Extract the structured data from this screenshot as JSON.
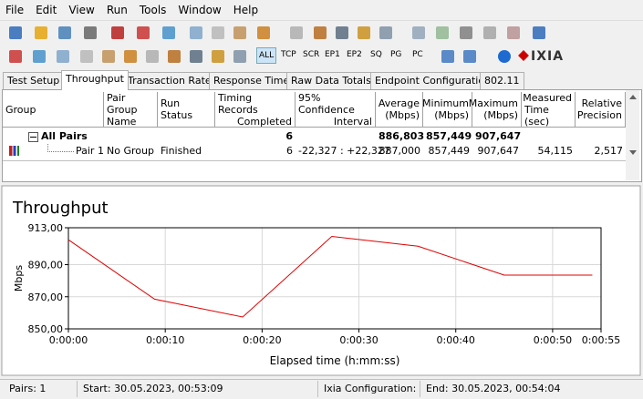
{
  "menu": [
    "File",
    "Edit",
    "View",
    "Run",
    "Tools",
    "Window",
    "Help"
  ],
  "toolbar": {
    "buttons": [
      "ALL",
      "TCP",
      "SCR",
      "EP1",
      "EP2",
      "SQ",
      "PG",
      "PC"
    ],
    "brand": "IXIA"
  },
  "tabs": [
    "Test Setup",
    "Throughput",
    "Transaction Rate",
    "Response Time",
    "Raw Data Totals",
    "Endpoint Configuration",
    "802.11"
  ],
  "table": {
    "headers": {
      "group": [
        "Group"
      ],
      "pair_group_name": [
        "Pair Group",
        "Name"
      ],
      "run_status": [
        "Run Status"
      ],
      "timing_records": [
        "Timing Records",
        "Completed"
      ],
      "confidence": [
        "95% Confidence",
        "Interval"
      ],
      "average": [
        "Average",
        "(Mbps)"
      ],
      "minimum": [
        "Minimum",
        "(Mbps)"
      ],
      "maximum": [
        "Maximum",
        "(Mbps)"
      ],
      "measured_time": [
        "Measured",
        "Time (sec)"
      ],
      "precision": [
        "Relative",
        "Precision"
      ]
    },
    "rows": [
      {
        "group": "All Pairs",
        "timing_records": "6",
        "average": "886,803",
        "minimum": "857,449",
        "maximum": "907,647"
      },
      {
        "group": "Pair 1",
        "pair_group_name": "No Group",
        "run_status": "Finished",
        "timing_records": "6",
        "confidence": "-22,327 : +22,327",
        "average": "887,000",
        "minimum": "857,449",
        "maximum": "907,647",
        "measured_time": "54,115",
        "precision": "2,517"
      }
    ]
  },
  "chart_data": {
    "type": "line",
    "title": "Throughput",
    "y_label": "Mbps",
    "x_label": "Elapsed time (h:mm:ss)",
    "x": [
      0,
      8.9,
      18,
      27.2,
      36.1,
      45,
      54.1
    ],
    "series": [
      {
        "color": "#e00000",
        "values": [
          905.5,
          868.5,
          857.4,
          907.6,
          901.5,
          883.5,
          883.5
        ]
      }
    ],
    "xlim": [
      0,
      55
    ],
    "xticks": [
      {
        "value": 0,
        "label": "0:00:00"
      },
      {
        "value": 10,
        "label": "0:00:10"
      },
      {
        "value": 20,
        "label": "0:00:20"
      },
      {
        "value": 30,
        "label": "0:00:30"
      },
      {
        "value": 40,
        "label": "0:00:40"
      },
      {
        "value": 50,
        "label": "0:00:50"
      },
      {
        "value": 55,
        "label": "0:00:55"
      }
    ],
    "ylim": [
      850,
      913
    ],
    "yticks": [
      {
        "value": 850,
        "label": "850,00"
      },
      {
        "value": 870,
        "label": "870,00"
      },
      {
        "value": 890,
        "label": "890,00"
      },
      {
        "value": 913,
        "label": "913,00"
      }
    ],
    "grid": true
  },
  "status": [
    "Pairs: 1",
    "Start: 30.05.2023, 00:53:09",
    "Ixia Configuration:",
    "End: 30.05.2023, 00:54:04"
  ]
}
